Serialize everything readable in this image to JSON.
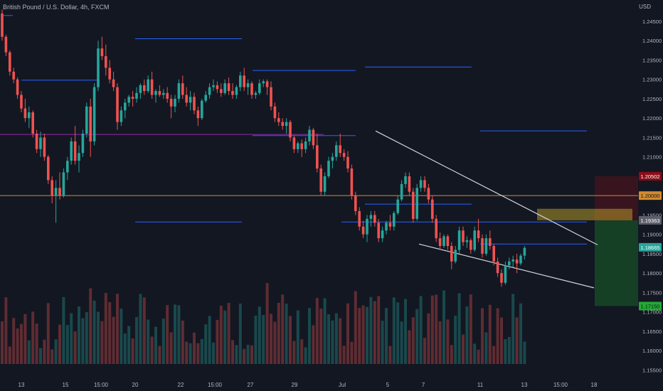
{
  "header": {
    "symbol_title": "British Pound / U.S. Dollar, 4h, FXCM",
    "currency": "USD"
  },
  "chart_data": {
    "type": "candlestick",
    "y_axis": {
      "range": [
        1.1525,
        1.2505
      ],
      "ticks": [
        "1.24500",
        "1.24000",
        "1.23500",
        "1.23000",
        "1.22500",
        "1.22000",
        "1.21500",
        "1.21000",
        "1.20500",
        "1.20000",
        "1.19500",
        "1.19000",
        "1.18500",
        "1.18000",
        "1.17500",
        "1.17000",
        "1.16500",
        "1.16000",
        "1.15500"
      ]
    },
    "x_axis": {
      "ticks": [
        "13",
        "15",
        "15:00",
        "20",
        "22",
        "15:00",
        "27",
        "29",
        "Jul",
        "5",
        "7",
        "11",
        "13",
        "15:00",
        "18"
      ]
    },
    "colors": {
      "up": "#26a69a",
      "down": "#ef5350",
      "background": "#131722"
    },
    "price_labels": [
      {
        "text": "1.20502",
        "value": 1.20502,
        "bg": "#8b0d16",
        "fg": "#ffffff"
      },
      {
        "text": "1.20000",
        "value": 1.2,
        "bg": "#d38b2c",
        "fg": "#131722"
      },
      {
        "text": "1.19363",
        "value": 1.19363,
        "bg": "#5d606b",
        "fg": "#ffffff"
      },
      {
        "text": "1.18665",
        "value": 1.18665,
        "bg": "#26a69a",
        "fg": "#ffffff"
      },
      {
        "text": "1.17150",
        "value": 1.1715,
        "bg": "#22ab33",
        "fg": "#131722"
      }
    ],
    "horizontal_levels": [
      {
        "value": 1.2,
        "color": "#d38b2c",
        "style": "full"
      },
      {
        "value": 1.2158,
        "color": "#9c27b0",
        "style": "segment",
        "x_start": 0,
        "x_end": 455
      },
      {
        "value": 1.2155,
        "color": "#2962ff",
        "style": "segment",
        "x_start": 355,
        "x_end": 500
      },
      {
        "value": 1.2465,
        "color": "#2962ff",
        "style": "segment",
        "x_start": 5,
        "x_end": 18
      },
      {
        "value": 1.2405,
        "color": "#2962ff",
        "style": "segment",
        "x_start": 190,
        "x_end": 340
      },
      {
        "value": 1.2323,
        "color": "#2962ff",
        "style": "segment",
        "x_start": 355,
        "x_end": 500
      },
      {
        "value": 1.2332,
        "color": "#2962ff",
        "style": "segment",
        "x_start": 513,
        "x_end": 663
      },
      {
        "value": 1.2298,
        "color": "#2962ff",
        "style": "segment",
        "x_start": 30,
        "x_end": 140
      },
      {
        "value": 1.2167,
        "color": "#2962ff",
        "style": "segment",
        "x_start": 675,
        "x_end": 825
      },
      {
        "value": 1.1978,
        "color": "#2962ff",
        "style": "segment",
        "x_start": 513,
        "x_end": 663
      },
      {
        "value": 1.1932,
        "color": "#2962ff",
        "style": "segment",
        "x_start": 190,
        "x_end": 340
      },
      {
        "value": 1.1932,
        "color": "#2962ff",
        "style": "segment",
        "x_start": 480,
        "x_end": 825
      },
      {
        "value": 1.1875,
        "color": "#2962ff",
        "style": "segment",
        "x_start": 675,
        "x_end": 825
      }
    ],
    "trendlines": [
      {
        "points": [
          [
            528,
            1.2167
          ],
          [
            840,
            1.1873
          ]
        ]
      },
      {
        "points": [
          [
            589,
            1.1875
          ],
          [
            835,
            1.1762
          ]
        ]
      }
    ],
    "position_zones": [
      {
        "label": "stop",
        "from": 1.19363,
        "to": 1.20502,
        "color": "rgba(139,13,22,0.30)"
      },
      {
        "label": "target",
        "from": 1.1715,
        "to": 1.19363,
        "color": "rgba(34,171,51,0.28)"
      },
      {
        "label": "entry-highlight",
        "from": 1.19363,
        "to": 1.1966,
        "color": "rgba(211,180,44,0.45)"
      }
    ],
    "series": [
      {
        "name": "GBPUSD",
        "x_start": 3,
        "x_step": 5.4,
        "candles": [
          [
            1.247,
            1.248,
            1.24,
            1.241
          ],
          [
            1.241,
            1.2415,
            1.236,
            1.237
          ],
          [
            1.237,
            1.2375,
            1.231,
            1.232
          ],
          [
            1.232,
            1.233,
            1.229,
            1.23
          ],
          [
            1.23,
            1.2305,
            1.225,
            1.226
          ],
          [
            1.226,
            1.227,
            1.2215,
            1.2225
          ],
          [
            1.2225,
            1.225,
            1.219,
            1.22
          ],
          [
            1.22,
            1.223,
            1.2175,
            1.2215
          ],
          [
            1.2215,
            1.222,
            1.215,
            1.216
          ],
          [
            1.216,
            1.217,
            1.211,
            1.212
          ],
          [
            1.212,
            1.2165,
            1.21,
            1.215
          ],
          [
            1.215,
            1.216,
            1.209,
            1.21
          ],
          [
            1.21,
            1.2105,
            1.203,
            1.204
          ],
          [
            1.204,
            1.205,
            1.198,
            1.2
          ],
          [
            1.2,
            1.204,
            1.193,
            1.202
          ],
          [
            1.202,
            1.206,
            1.199,
            1.2
          ],
          [
            1.2,
            1.207,
            1.1995,
            1.206
          ],
          [
            1.206,
            1.21,
            1.204,
            1.209
          ],
          [
            1.209,
            1.215,
            1.208,
            1.214
          ],
          [
            1.214,
            1.218,
            1.208,
            1.209
          ],
          [
            1.209,
            1.213,
            1.206,
            1.211
          ],
          [
            1.211,
            1.217,
            1.21,
            1.216
          ],
          [
            1.216,
            1.224,
            1.215,
            1.223
          ],
          [
            1.223,
            1.225,
            1.21,
            1.214
          ],
          [
            1.214,
            1.229,
            1.213,
            1.228
          ],
          [
            1.228,
            1.24,
            1.227,
            1.238
          ],
          [
            1.238,
            1.241,
            1.235,
            1.236
          ],
          [
            1.236,
            1.239,
            1.231,
            1.233
          ],
          [
            1.233,
            1.235,
            1.229,
            1.23
          ],
          [
            1.23,
            1.232,
            1.227,
            1.228
          ],
          [
            1.228,
            1.229,
            1.217,
            1.219
          ],
          [
            1.219,
            1.223,
            1.218,
            1.222
          ],
          [
            1.222,
            1.225,
            1.22,
            1.224
          ],
          [
            1.224,
            1.226,
            1.223,
            1.2255
          ],
          [
            1.2255,
            1.227,
            1.223,
            1.225
          ],
          [
            1.225,
            1.228,
            1.224,
            1.2265
          ],
          [
            1.2265,
            1.229,
            1.225,
            1.2285
          ],
          [
            1.2285,
            1.23,
            1.226,
            1.227
          ],
          [
            1.227,
            1.231,
            1.2265,
            1.23
          ],
          [
            1.23,
            1.232,
            1.225,
            1.226
          ],
          [
            1.226,
            1.2275,
            1.224,
            1.227
          ],
          [
            1.227,
            1.2285,
            1.2255,
            1.226
          ],
          [
            1.226,
            1.2275,
            1.225,
            1.2265
          ],
          [
            1.2265,
            1.228,
            1.224,
            1.225
          ],
          [
            1.225,
            1.226,
            1.22,
            1.223
          ],
          [
            1.223,
            1.226,
            1.2215,
            1.225
          ],
          [
            1.225,
            1.23,
            1.224,
            1.229
          ],
          [
            1.229,
            1.231,
            1.225,
            1.226
          ],
          [
            1.226,
            1.228,
            1.223,
            1.224
          ],
          [
            1.224,
            1.227,
            1.222,
            1.2255
          ],
          [
            1.2255,
            1.2265,
            1.221,
            1.222
          ],
          [
            1.222,
            1.223,
            1.218,
            1.22
          ],
          [
            1.22,
            1.225,
            1.2195,
            1.2245
          ],
          [
            1.2245,
            1.227,
            1.224,
            1.226
          ],
          [
            1.226,
            1.229,
            1.225,
            1.228
          ],
          [
            1.228,
            1.23,
            1.227,
            1.2285
          ],
          [
            1.2285,
            1.2295,
            1.2265,
            1.2275
          ],
          [
            1.2275,
            1.229,
            1.2255,
            1.2265
          ],
          [
            1.2265,
            1.23,
            1.226,
            1.229
          ],
          [
            1.229,
            1.2305,
            1.226,
            1.227
          ],
          [
            1.227,
            1.229,
            1.225,
            1.226
          ],
          [
            1.226,
            1.2285,
            1.225,
            1.228
          ],
          [
            1.228,
            1.232,
            1.227,
            1.231
          ],
          [
            1.231,
            1.233,
            1.227,
            1.228
          ],
          [
            1.228,
            1.23,
            1.226,
            1.229
          ],
          [
            1.229,
            1.2295,
            1.225,
            1.226
          ],
          [
            1.226,
            1.227,
            1.225,
            1.2265
          ],
          [
            1.2265,
            1.23,
            1.226,
            1.229
          ],
          [
            1.229,
            1.23,
            1.228,
            1.2295
          ],
          [
            1.2295,
            1.23,
            1.226,
            1.228
          ],
          [
            1.228,
            1.2295,
            1.222,
            1.223
          ],
          [
            1.223,
            1.224,
            1.219,
            1.22
          ],
          [
            1.22,
            1.2215,
            1.218,
            1.219
          ],
          [
            1.219,
            1.22,
            1.217,
            1.218
          ],
          [
            1.218,
            1.22,
            1.216,
            1.219
          ],
          [
            1.219,
            1.2195,
            1.214,
            1.215
          ],
          [
            1.215,
            1.2155,
            1.211,
            1.212
          ],
          [
            1.212,
            1.214,
            1.211,
            1.2135
          ],
          [
            1.2135,
            1.2145,
            1.21,
            1.212
          ],
          [
            1.212,
            1.215,
            1.211,
            1.214
          ],
          [
            1.214,
            1.218,
            1.213,
            1.217
          ],
          [
            1.217,
            1.2175,
            1.212,
            1.213
          ],
          [
            1.213,
            1.216,
            1.206,
            1.207
          ],
          [
            1.207,
            1.208,
            1.2,
            1.201
          ],
          [
            1.201,
            1.206,
            1.2,
            1.205
          ],
          [
            1.205,
            1.21,
            1.2045,
            1.209
          ],
          [
            1.209,
            1.211,
            1.207,
            1.21
          ],
          [
            1.21,
            1.214,
            1.209,
            1.213
          ],
          [
            1.213,
            1.216,
            1.21,
            1.211
          ],
          [
            1.211,
            1.212,
            1.209,
            1.21
          ],
          [
            1.21,
            1.2115,
            1.206,
            1.207
          ],
          [
            1.207,
            1.208,
            1.199,
            1.2
          ],
          [
            1.2,
            1.201,
            1.195,
            1.196
          ],
          [
            1.196,
            1.197,
            1.191,
            1.192
          ],
          [
            1.192,
            1.1935,
            1.189,
            1.19
          ],
          [
            1.19,
            1.195,
            1.188,
            1.194
          ],
          [
            1.194,
            1.196,
            1.192,
            1.195
          ],
          [
            1.195,
            1.196,
            1.192,
            1.193
          ],
          [
            1.193,
            1.194,
            1.188,
            1.189
          ],
          [
            1.189,
            1.192,
            1.188,
            1.191
          ],
          [
            1.191,
            1.1935,
            1.19,
            1.193
          ],
          [
            1.193,
            1.195,
            1.191,
            1.192
          ],
          [
            1.192,
            1.196,
            1.191,
            1.1955
          ],
          [
            1.1955,
            1.2,
            1.195,
            1.199
          ],
          [
            1.199,
            1.204,
            1.1985,
            1.203
          ],
          [
            1.203,
            1.206,
            1.202,
            1.205
          ],
          [
            1.205,
            1.206,
            1.2,
            1.201
          ],
          [
            1.201,
            1.202,
            1.193,
            1.194
          ],
          [
            1.194,
            1.203,
            1.1935,
            1.202
          ],
          [
            1.202,
            1.205,
            1.201,
            1.204
          ],
          [
            1.204,
            1.205,
            1.201,
            1.202
          ],
          [
            1.202,
            1.203,
            1.198,
            1.199
          ],
          [
            1.199,
            1.2,
            1.193,
            1.194
          ],
          [
            1.194,
            1.195,
            1.188,
            1.189
          ],
          [
            1.189,
            1.1905,
            1.186,
            1.187
          ],
          [
            1.187,
            1.19,
            1.1865,
            1.1895
          ],
          [
            1.1895,
            1.19,
            1.186,
            1.187
          ],
          [
            1.187,
            1.188,
            1.181,
            1.183
          ],
          [
            1.183,
            1.187,
            1.1825,
            1.186
          ],
          [
            1.186,
            1.192,
            1.185,
            1.191
          ],
          [
            1.191,
            1.192,
            1.187,
            1.188
          ],
          [
            1.188,
            1.1895,
            1.1865,
            1.1885
          ],
          [
            1.1885,
            1.189,
            1.185,
            1.186
          ],
          [
            1.186,
            1.192,
            1.1855,
            1.191
          ],
          [
            1.191,
            1.194,
            1.188,
            1.189
          ],
          [
            1.189,
            1.19,
            1.184,
            1.185
          ],
          [
            1.185,
            1.19,
            1.1845,
            1.189
          ],
          [
            1.189,
            1.191,
            1.186,
            1.187
          ],
          [
            1.187,
            1.1875,
            1.182,
            1.183
          ],
          [
            1.183,
            1.184,
            1.179,
            1.18
          ],
          [
            1.18,
            1.181,
            1.1765,
            1.1775
          ],
          [
            1.1775,
            1.183,
            1.177,
            1.182
          ],
          [
            1.182,
            1.184,
            1.181,
            1.183
          ],
          [
            1.183,
            1.1845,
            1.1815,
            1.1835
          ],
          [
            1.1835,
            1.185,
            1.18,
            1.1825
          ],
          [
            1.1825,
            1.185,
            1.182,
            1.1845
          ],
          [
            1.1845,
            1.187,
            1.1835,
            1.1865
          ]
        ]
      }
    ],
    "volume_range": [
      0,
      1
    ]
  }
}
